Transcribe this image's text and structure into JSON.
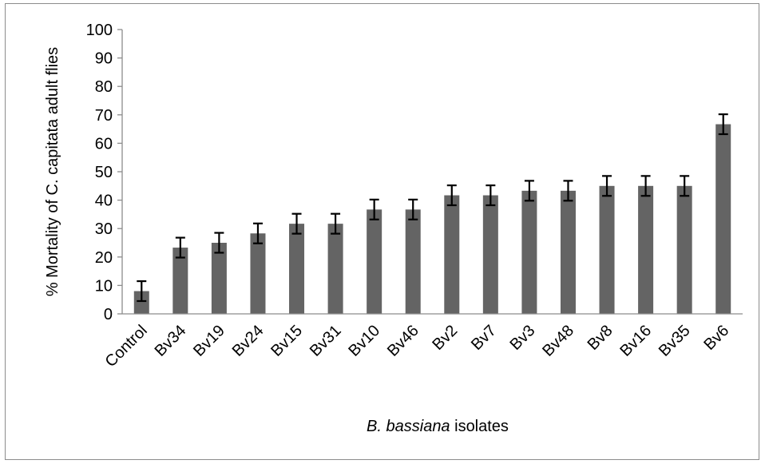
{
  "chart_data": {
    "type": "bar",
    "title": "",
    "xlabel_italic": "B. bassiana",
    "xlabel_rest": " isolates",
    "ylabel": "% Mortality of C. capitata adult flies",
    "ylim": [
      0,
      100
    ],
    "yticks": [
      "0",
      "10",
      "20",
      "30",
      "40",
      "50",
      "60",
      "70",
      "80",
      "90",
      "100"
    ],
    "categories": [
      "Control",
      "Bv34",
      "Bv19",
      "Bv24",
      "Bv15",
      "Bv31",
      "Bv10",
      "Bv46",
      "Bv2",
      "Bv7",
      "Bv3",
      "Bv48",
      "Bv8",
      "Bv16",
      "Bv35",
      "Bv6"
    ],
    "values": [
      8,
      23.3,
      25,
      28.3,
      31.7,
      31.7,
      36.7,
      36.7,
      41.7,
      41.7,
      43.3,
      43.3,
      45,
      45,
      45,
      66.7
    ],
    "error": [
      3.5,
      3.5,
      3.5,
      3.5,
      3.5,
      3.5,
      3.5,
      3.5,
      3.5,
      3.5,
      3.5,
      3.5,
      3.5,
      3.5,
      3.5,
      3.5
    ],
    "bar_color": "#646464",
    "grid": false,
    "legend": "none"
  }
}
